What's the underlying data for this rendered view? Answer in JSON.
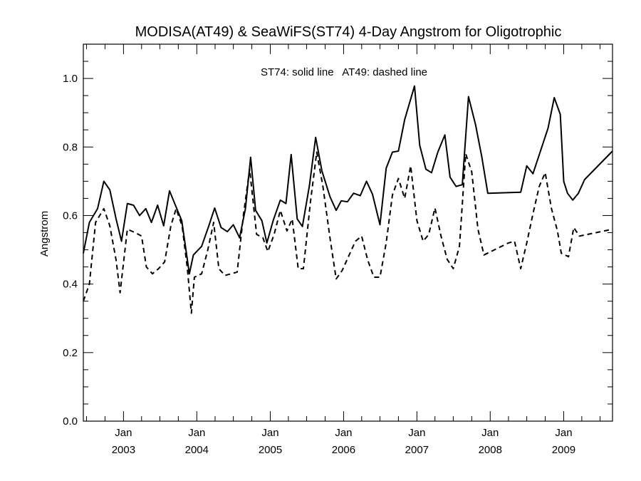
{
  "chart_data": {
    "type": "line",
    "title": "MODISA(AT49) & SeaWiFS(ST74) 4-Day Angstrom for Oligotrophic",
    "xlabel": "",
    "ylabel": "Angstrom",
    "annotation": "ST74: solid line   AT49: dashed line",
    "xlim": [
      "2002-06-15",
      "2009-09-01"
    ],
    "ylim": [
      0.0,
      1.1
    ],
    "y_ticks": [
      {
        "value": 0.0,
        "label": "0.0"
      },
      {
        "value": 0.2,
        "label": "0.2"
      },
      {
        "value": 0.4,
        "label": "0.4"
      },
      {
        "value": 0.6,
        "label": "0.6"
      },
      {
        "value": 0.8,
        "label": "0.8"
      },
      {
        "value": 1.0,
        "label": "1.0"
      }
    ],
    "x_ticks": [
      {
        "date": "2003-01-01",
        "month": "Jan",
        "year": "2003"
      },
      {
        "date": "2004-01-01",
        "month": "Jan",
        "year": "2004"
      },
      {
        "date": "2005-01-01",
        "month": "Jan",
        "year": "2005"
      },
      {
        "date": "2006-01-01",
        "month": "Jan",
        "year": "2006"
      },
      {
        "date": "2007-01-01",
        "month": "Jan",
        "year": "2007"
      },
      {
        "date": "2008-01-01",
        "month": "Jan",
        "year": "2008"
      },
      {
        "date": "2009-01-01",
        "month": "Jan",
        "year": "2009"
      }
    ],
    "grid": false,
    "series": [
      {
        "name": "ST74",
        "style": "solid",
        "color": "#000000",
        "points": [
          [
            "2002-06-15",
            0.49
          ],
          [
            "2002-07-15",
            0.58
          ],
          [
            "2002-08-25",
            0.62
          ],
          [
            "2002-09-25",
            0.7
          ],
          [
            "2002-10-25",
            0.675
          ],
          [
            "2002-11-25",
            0.59
          ],
          [
            "2002-12-22",
            0.525
          ],
          [
            "2003-01-20",
            0.635
          ],
          [
            "2003-02-20",
            0.63
          ],
          [
            "2003-03-22",
            0.6
          ],
          [
            "2003-04-22",
            0.62
          ],
          [
            "2003-05-20",
            0.58
          ],
          [
            "2003-06-20",
            0.63
          ],
          [
            "2003-07-20",
            0.57
          ],
          [
            "2003-08-18",
            0.672
          ],
          [
            "2003-09-15",
            0.632
          ],
          [
            "2003-10-18",
            0.585
          ],
          [
            "2003-11-25",
            0.43
          ],
          [
            "2003-12-15",
            0.485
          ],
          [
            "2004-01-25",
            0.51
          ],
          [
            "2004-03-01",
            0.57
          ],
          [
            "2004-03-30",
            0.622
          ],
          [
            "2004-05-01",
            0.565
          ],
          [
            "2004-06-01",
            0.553
          ],
          [
            "2004-07-01",
            0.573
          ],
          [
            "2004-08-01",
            0.535
          ],
          [
            "2004-08-30",
            0.62
          ],
          [
            "2004-09-25",
            0.77
          ],
          [
            "2004-10-20",
            0.615
          ],
          [
            "2004-11-20",
            0.585
          ],
          [
            "2004-12-15",
            0.52
          ],
          [
            "2005-01-15",
            0.585
          ],
          [
            "2005-02-20",
            0.645
          ],
          [
            "2005-03-20",
            0.635
          ],
          [
            "2005-04-15",
            0.778
          ],
          [
            "2005-05-15",
            0.59
          ],
          [
            "2005-06-10",
            0.568
          ],
          [
            "2005-07-15",
            0.688
          ],
          [
            "2005-08-15",
            0.828
          ],
          [
            "2005-09-15",
            0.73
          ],
          [
            "2005-10-25",
            0.655
          ],
          [
            "2005-11-25",
            0.615
          ],
          [
            "2005-12-20",
            0.643
          ],
          [
            "2006-01-20",
            0.64
          ],
          [
            "2006-02-20",
            0.665
          ],
          [
            "2006-03-25",
            0.658
          ],
          [
            "2006-04-25",
            0.7
          ],
          [
            "2006-05-25",
            0.662
          ],
          [
            "2006-07-01",
            0.573
          ],
          [
            "2006-08-01",
            0.738
          ],
          [
            "2006-09-01",
            0.785
          ],
          [
            "2006-10-01",
            0.788
          ],
          [
            "2006-11-01",
            0.88
          ],
          [
            "2006-12-20",
            0.978
          ],
          [
            "2007-01-15",
            0.805
          ],
          [
            "2007-02-15",
            0.735
          ],
          [
            "2007-03-15",
            0.725
          ],
          [
            "2007-04-15",
            0.785
          ],
          [
            "2007-05-20",
            0.835
          ],
          [
            "2007-06-15",
            0.712
          ],
          [
            "2007-07-15",
            0.685
          ],
          [
            "2007-08-15",
            0.69
          ],
          [
            "2007-09-15",
            0.947
          ],
          [
            "2007-10-20",
            0.865
          ],
          [
            "2007-11-20",
            0.772
          ],
          [
            "2007-12-20",
            0.665
          ],
          [
            "2008-06-01",
            0.668
          ],
          [
            "2008-07-01",
            0.745
          ],
          [
            "2008-08-01",
            0.722
          ],
          [
            "2008-10-15",
            0.855
          ],
          [
            "2008-11-15",
            0.944
          ],
          [
            "2008-12-15",
            0.895
          ],
          [
            "2009-01-01",
            0.7
          ],
          [
            "2009-01-20",
            0.665
          ],
          [
            "2009-02-15",
            0.645
          ],
          [
            "2009-03-15",
            0.665
          ],
          [
            "2009-04-15",
            0.705
          ],
          [
            "2009-09-01",
            0.788
          ]
        ]
      },
      {
        "name": "AT49",
        "style": "dashed",
        "color": "#000000",
        "points": [
          [
            "2002-06-15",
            0.35
          ],
          [
            "2002-07-15",
            0.4
          ],
          [
            "2002-08-15",
            0.58
          ],
          [
            "2002-09-25",
            0.62
          ],
          [
            "2002-10-25",
            0.57
          ],
          [
            "2002-11-25",
            0.47
          ],
          [
            "2002-12-15",
            0.375
          ],
          [
            "2003-01-20",
            0.56
          ],
          [
            "2003-03-01",
            0.55
          ],
          [
            "2003-04-01",
            0.54
          ],
          [
            "2003-04-25",
            0.45
          ],
          [
            "2003-05-25",
            0.43
          ],
          [
            "2003-06-25",
            0.445
          ],
          [
            "2003-07-25",
            0.465
          ],
          [
            "2003-08-25",
            0.57
          ],
          [
            "2003-09-20",
            0.62
          ],
          [
            "2003-10-20",
            0.57
          ],
          [
            "2003-11-15",
            0.445
          ],
          [
            "2003-12-05",
            0.315
          ],
          [
            "2003-12-20",
            0.42
          ],
          [
            "2004-01-25",
            0.43
          ],
          [
            "2004-02-25",
            0.5
          ],
          [
            "2004-03-25",
            0.58
          ],
          [
            "2004-04-20",
            0.445
          ],
          [
            "2004-05-20",
            0.425
          ],
          [
            "2004-06-20",
            0.43
          ],
          [
            "2004-07-20",
            0.435
          ],
          [
            "2004-08-20",
            0.6
          ],
          [
            "2004-09-20",
            0.735
          ],
          [
            "2004-10-25",
            0.545
          ],
          [
            "2004-11-25",
            0.535
          ],
          [
            "2004-12-20",
            0.495
          ],
          [
            "2005-01-20",
            0.545
          ],
          [
            "2005-02-20",
            0.615
          ],
          [
            "2005-03-25",
            0.555
          ],
          [
            "2005-04-20",
            0.59
          ],
          [
            "2005-05-20",
            0.445
          ],
          [
            "2005-06-15",
            0.445
          ],
          [
            "2005-07-20",
            0.64
          ],
          [
            "2005-08-20",
            0.785
          ],
          [
            "2005-09-20",
            0.685
          ],
          [
            "2005-10-25",
            0.535
          ],
          [
            "2005-11-25",
            0.415
          ],
          [
            "2005-12-25",
            0.44
          ],
          [
            "2006-01-25",
            0.48
          ],
          [
            "2006-03-01",
            0.525
          ],
          [
            "2006-04-01",
            0.54
          ],
          [
            "2006-05-01",
            0.47
          ],
          [
            "2006-06-01",
            0.42
          ],
          [
            "2006-07-01",
            0.42
          ],
          [
            "2006-08-01",
            0.52
          ],
          [
            "2006-09-01",
            0.66
          ],
          [
            "2006-10-01",
            0.708
          ],
          [
            "2006-11-01",
            0.65
          ],
          [
            "2006-12-01",
            0.745
          ],
          [
            "2007-01-01",
            0.585
          ],
          [
            "2007-02-01",
            0.525
          ],
          [
            "2007-03-01",
            0.545
          ],
          [
            "2007-04-01",
            0.622
          ],
          [
            "2007-05-01",
            0.54
          ],
          [
            "2007-06-01",
            0.472
          ],
          [
            "2007-07-01",
            0.445
          ],
          [
            "2007-08-01",
            0.51
          ],
          [
            "2007-09-01",
            0.78
          ],
          [
            "2007-10-01",
            0.728
          ],
          [
            "2007-11-01",
            0.56
          ],
          [
            "2007-12-01",
            0.485
          ],
          [
            "2008-04-01",
            0.52
          ],
          [
            "2008-05-01",
            0.525
          ],
          [
            "2008-06-01",
            0.445
          ],
          [
            "2008-07-01",
            0.52
          ],
          [
            "2008-08-01",
            0.605
          ],
          [
            "2008-09-01",
            0.685
          ],
          [
            "2008-10-01",
            0.725
          ],
          [
            "2008-11-01",
            0.62
          ],
          [
            "2008-12-01",
            0.555
          ],
          [
            "2008-12-20",
            0.49
          ],
          [
            "2009-01-25",
            0.48
          ],
          [
            "2009-02-20",
            0.565
          ],
          [
            "2009-03-20",
            0.54
          ],
          [
            "2009-09-01",
            0.56
          ]
        ]
      }
    ]
  }
}
